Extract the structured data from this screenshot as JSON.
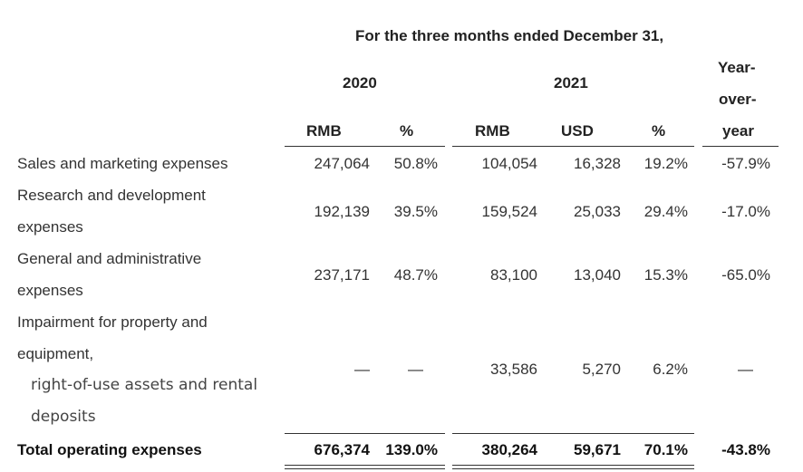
{
  "header": {
    "period": "For the three months ended December 31,",
    "year_2020": "2020",
    "year_2021": "2021",
    "yoy_line1": "Year-",
    "yoy_line2": "over-",
    "yoy_line3": "year",
    "cols": {
      "rmb_2020": "RMB",
      "pct_2020": "%",
      "rmb_2021": "RMB",
      "usd_2021": "USD",
      "pct_2021": "%"
    }
  },
  "rows": [
    {
      "label_lines": [
        "Sales and marketing expenses"
      ],
      "rmb_2020": "247,064",
      "pct_2020": "50.8%",
      "rmb_2021": "104,054",
      "usd_2021": "16,328",
      "pct_2021": "19.2%",
      "yoy": "-57.9%"
    },
    {
      "label_lines": [
        "Research and development",
        "expenses"
      ],
      "rmb_2020": "192,139",
      "pct_2020": "39.5%",
      "rmb_2021": "159,524",
      "usd_2021": "25,033",
      "pct_2021": "29.4%",
      "yoy": "-17.0%"
    },
    {
      "label_lines": [
        "General and administrative",
        "expenses"
      ],
      "rmb_2020": "237,171",
      "pct_2020": "48.7%",
      "rmb_2021": "83,100",
      "usd_2021": "13,040",
      "pct_2021": "15.3%",
      "yoy": "-65.0%"
    },
    {
      "label_lines": [
        "Impairment for property and",
        "equipment,",
        "right-of-use assets and rental",
        "deposits"
      ],
      "rmb_2020": "—",
      "pct_2020": "—",
      "rmb_2021": "33,586",
      "usd_2021": "5,270",
      "pct_2021": "6.2%",
      "yoy": "—"
    }
  ],
  "total": {
    "label": "Total operating expenses",
    "rmb_2020": "676,374",
    "pct_2020": "139.0%",
    "rmb_2021": "380,264",
    "usd_2021": "59,671",
    "pct_2021": "70.1%",
    "yoy": "-43.8%"
  }
}
